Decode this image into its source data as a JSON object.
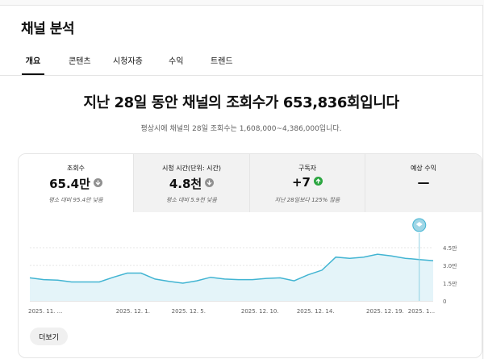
{
  "header": {
    "title": "채널 분석"
  },
  "tabs": [
    {
      "label": "개요",
      "active": true
    },
    {
      "label": "콘텐츠",
      "active": false
    },
    {
      "label": "시청자층",
      "active": false
    },
    {
      "label": "수익",
      "active": false
    },
    {
      "label": "트렌드",
      "active": false
    }
  ],
  "summary": {
    "headline": "지난 28일 동안 채널의 조회수가 653,836회입니다",
    "subline": "평상시에 채널의 28일 조회수는 1,608,000~4,386,000입니다."
  },
  "metrics": [
    {
      "label": "조회수",
      "value": "65.4만",
      "trend": "down",
      "note": "평소 대비 95.4만 낮음",
      "selected": true
    },
    {
      "label": "시청 시간(단위: 시간)",
      "value": "4.8천",
      "trend": "down",
      "note": "평소 대비 5.9천 낮음",
      "selected": false
    },
    {
      "label": "구독자",
      "value": "+7",
      "trend": "up",
      "note": "지난 28일보다 125% 많음",
      "selected": false
    },
    {
      "label": "예상 수익",
      "value": "—",
      "trend": "",
      "note": "",
      "selected": false
    }
  ],
  "chart_data": {
    "type": "area",
    "x": [
      "2025-11-24",
      "2025-11-25",
      "2025-11-26",
      "2025-11-27",
      "2025-11-28",
      "2025-11-29",
      "2025-11-30",
      "2025-12-01",
      "2025-12-02",
      "2025-12-03",
      "2025-12-04",
      "2025-12-05",
      "2025-12-06",
      "2025-12-07",
      "2025-12-08",
      "2025-12-09",
      "2025-12-10",
      "2025-12-11",
      "2025-12-12",
      "2025-12-13",
      "2025-12-14",
      "2025-12-15",
      "2025-12-16",
      "2025-12-17",
      "2025-12-18",
      "2025-12-19",
      "2025-12-20",
      "2025-12-21",
      "2025-12-22",
      "2025-12-23"
    ],
    "series": [
      {
        "values": [
          19500,
          18000,
          17500,
          16000,
          16000,
          16000,
          20000,
          23500,
          23500,
          18500,
          16500,
          15000,
          17000,
          20000,
          18500,
          18000,
          18000,
          19000,
          19500,
          17000,
          22000,
          26000,
          37000,
          36000,
          37000,
          39500,
          38000,
          36000,
          35000,
          34000
        ]
      }
    ],
    "x_tick_labels": [
      {
        "index": 0,
        "label": "2025. 11. ..."
      },
      {
        "index": 7,
        "label": "2025. 12. 1."
      },
      {
        "index": 11,
        "label": "2025. 12. 5."
      },
      {
        "index": 16,
        "label": "2025. 12. 10."
      },
      {
        "index": 20,
        "label": "2025. 12. 14."
      },
      {
        "index": 25,
        "label": "2025. 12. 19."
      },
      {
        "index": 28,
        "label": "2025. 1..."
      }
    ],
    "y_ticks": [
      {
        "value": 45000,
        "label": "4.5만"
      },
      {
        "value": 30000,
        "label": "3.0만"
      },
      {
        "value": 15000,
        "label": "1.5만"
      },
      {
        "value": 0,
        "label": "0"
      }
    ],
    "ylim": [
      0,
      45000
    ],
    "marker_index": 28,
    "grid": true,
    "line_color": "#41b4d2",
    "fill_color": "#e4f4f9"
  },
  "actions": {
    "more_label": "더보기"
  }
}
